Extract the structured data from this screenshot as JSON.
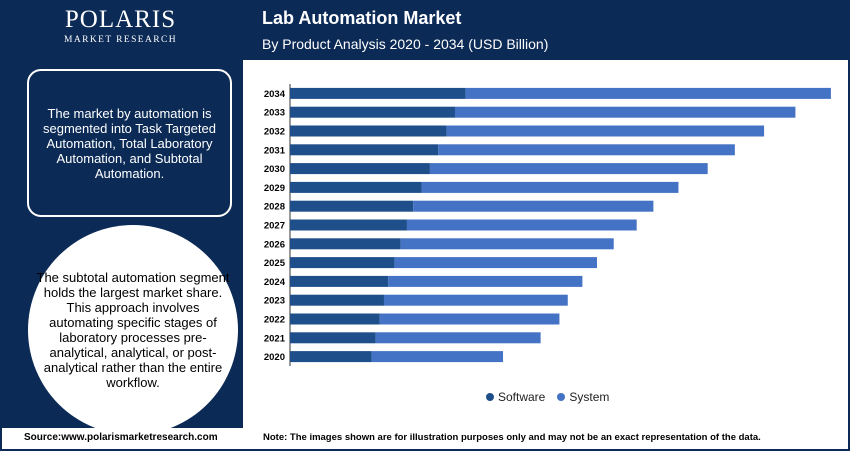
{
  "brand": {
    "name": "POLARIS",
    "tagline": "MARKET RESEARCH"
  },
  "header": {
    "title": "Lab Automation Market",
    "subtitle": "By Product Analysis 2020 - 2034 (USD Billion)"
  },
  "sidebar": {
    "box_text": "The market by automation is segmented into Task Targeted Automation, Total Laboratory Automation, and Subtotal Automation.",
    "circle_text": "The subtotal automation segment holds the largest market share. This approach involves automating specific stages of laboratory processes pre-analytical, analytical, or post-analytical rather than the entire workflow."
  },
  "footer": {
    "source": "Source:www.polarismarketresearch.com",
    "note": "Note: The images shown are for illustration purposes only and may not be an exact representation of the data."
  },
  "colors": {
    "navy": "#0b2a56",
    "software": "#1f4f8a",
    "system": "#4472c4"
  },
  "chart_data": {
    "type": "bar",
    "orientation": "horizontal",
    "stacked": true,
    "categories": [
      "2034",
      "2033",
      "2032",
      "2031",
      "2030",
      "2029",
      "2028",
      "2027",
      "2026",
      "2025",
      "2024",
      "2023",
      "2022",
      "2021",
      "2020"
    ],
    "series": [
      {
        "name": "Software",
        "values": [
          8.4,
          7.9,
          7.5,
          7.1,
          6.7,
          6.3,
          5.9,
          5.6,
          5.3,
          5.0,
          4.7,
          4.5,
          4.3,
          4.1,
          3.9
        ]
      },
      {
        "name": "System",
        "values": [
          17.5,
          16.3,
          15.2,
          14.2,
          13.3,
          12.3,
          11.5,
          11.0,
          10.2,
          9.7,
          9.3,
          8.8,
          8.6,
          7.9,
          6.3
        ]
      }
    ],
    "xlim": [
      0,
      26
    ],
    "legend_position": "bottom",
    "grid": false
  }
}
